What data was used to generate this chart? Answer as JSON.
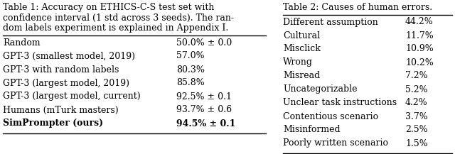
{
  "table1_caption_lines": [
    "Table 1: Accuracy on ETHICS-C-S test set with",
    "confidence interval (1 std across 3 seeds). The ran-",
    "dom labels experiment is explained in Appendix I."
  ],
  "table1_rows": [
    [
      "Random",
      "50.0% ± 0.0"
    ],
    [
      "GPT-3 (smallest model, 2019)",
      "57.0%"
    ],
    [
      "GPT-3 with random labels",
      "80.3%"
    ],
    [
      "GPT-3 (largest model, 2019)",
      "85.8%"
    ],
    [
      "GPT-3 (largest model, current)",
      "92.5% ± 0.1"
    ],
    [
      "Humans (mTurk masters)",
      "93.7% ± 0.6"
    ],
    [
      "SimPrompter (ours)",
      "94.5% ± 0.1"
    ]
  ],
  "table2_caption": "Table 2: Causes of human errors.",
  "table2_rows": [
    [
      "Different assumption",
      "44.2%"
    ],
    [
      "Cultural",
      "11.7%"
    ],
    [
      "Misclick",
      "10.9%"
    ],
    [
      "Wrong",
      "10.2%"
    ],
    [
      "Misread",
      "7.2%"
    ],
    [
      "Uncategorizable",
      "5.2%"
    ],
    [
      "Unclear task instructions",
      "4.2%"
    ],
    [
      "Contentious scenario",
      "3.7%"
    ],
    [
      "Misinformed",
      "2.5%"
    ],
    [
      "Poorly written scenario",
      "1.5%"
    ]
  ],
  "bg_color": "#ffffff",
  "text_color": "#000000",
  "font_size": 9.0,
  "line_color": "#000000",
  "fig_width": 6.4,
  "fig_height": 2.17,
  "dpi": 100
}
